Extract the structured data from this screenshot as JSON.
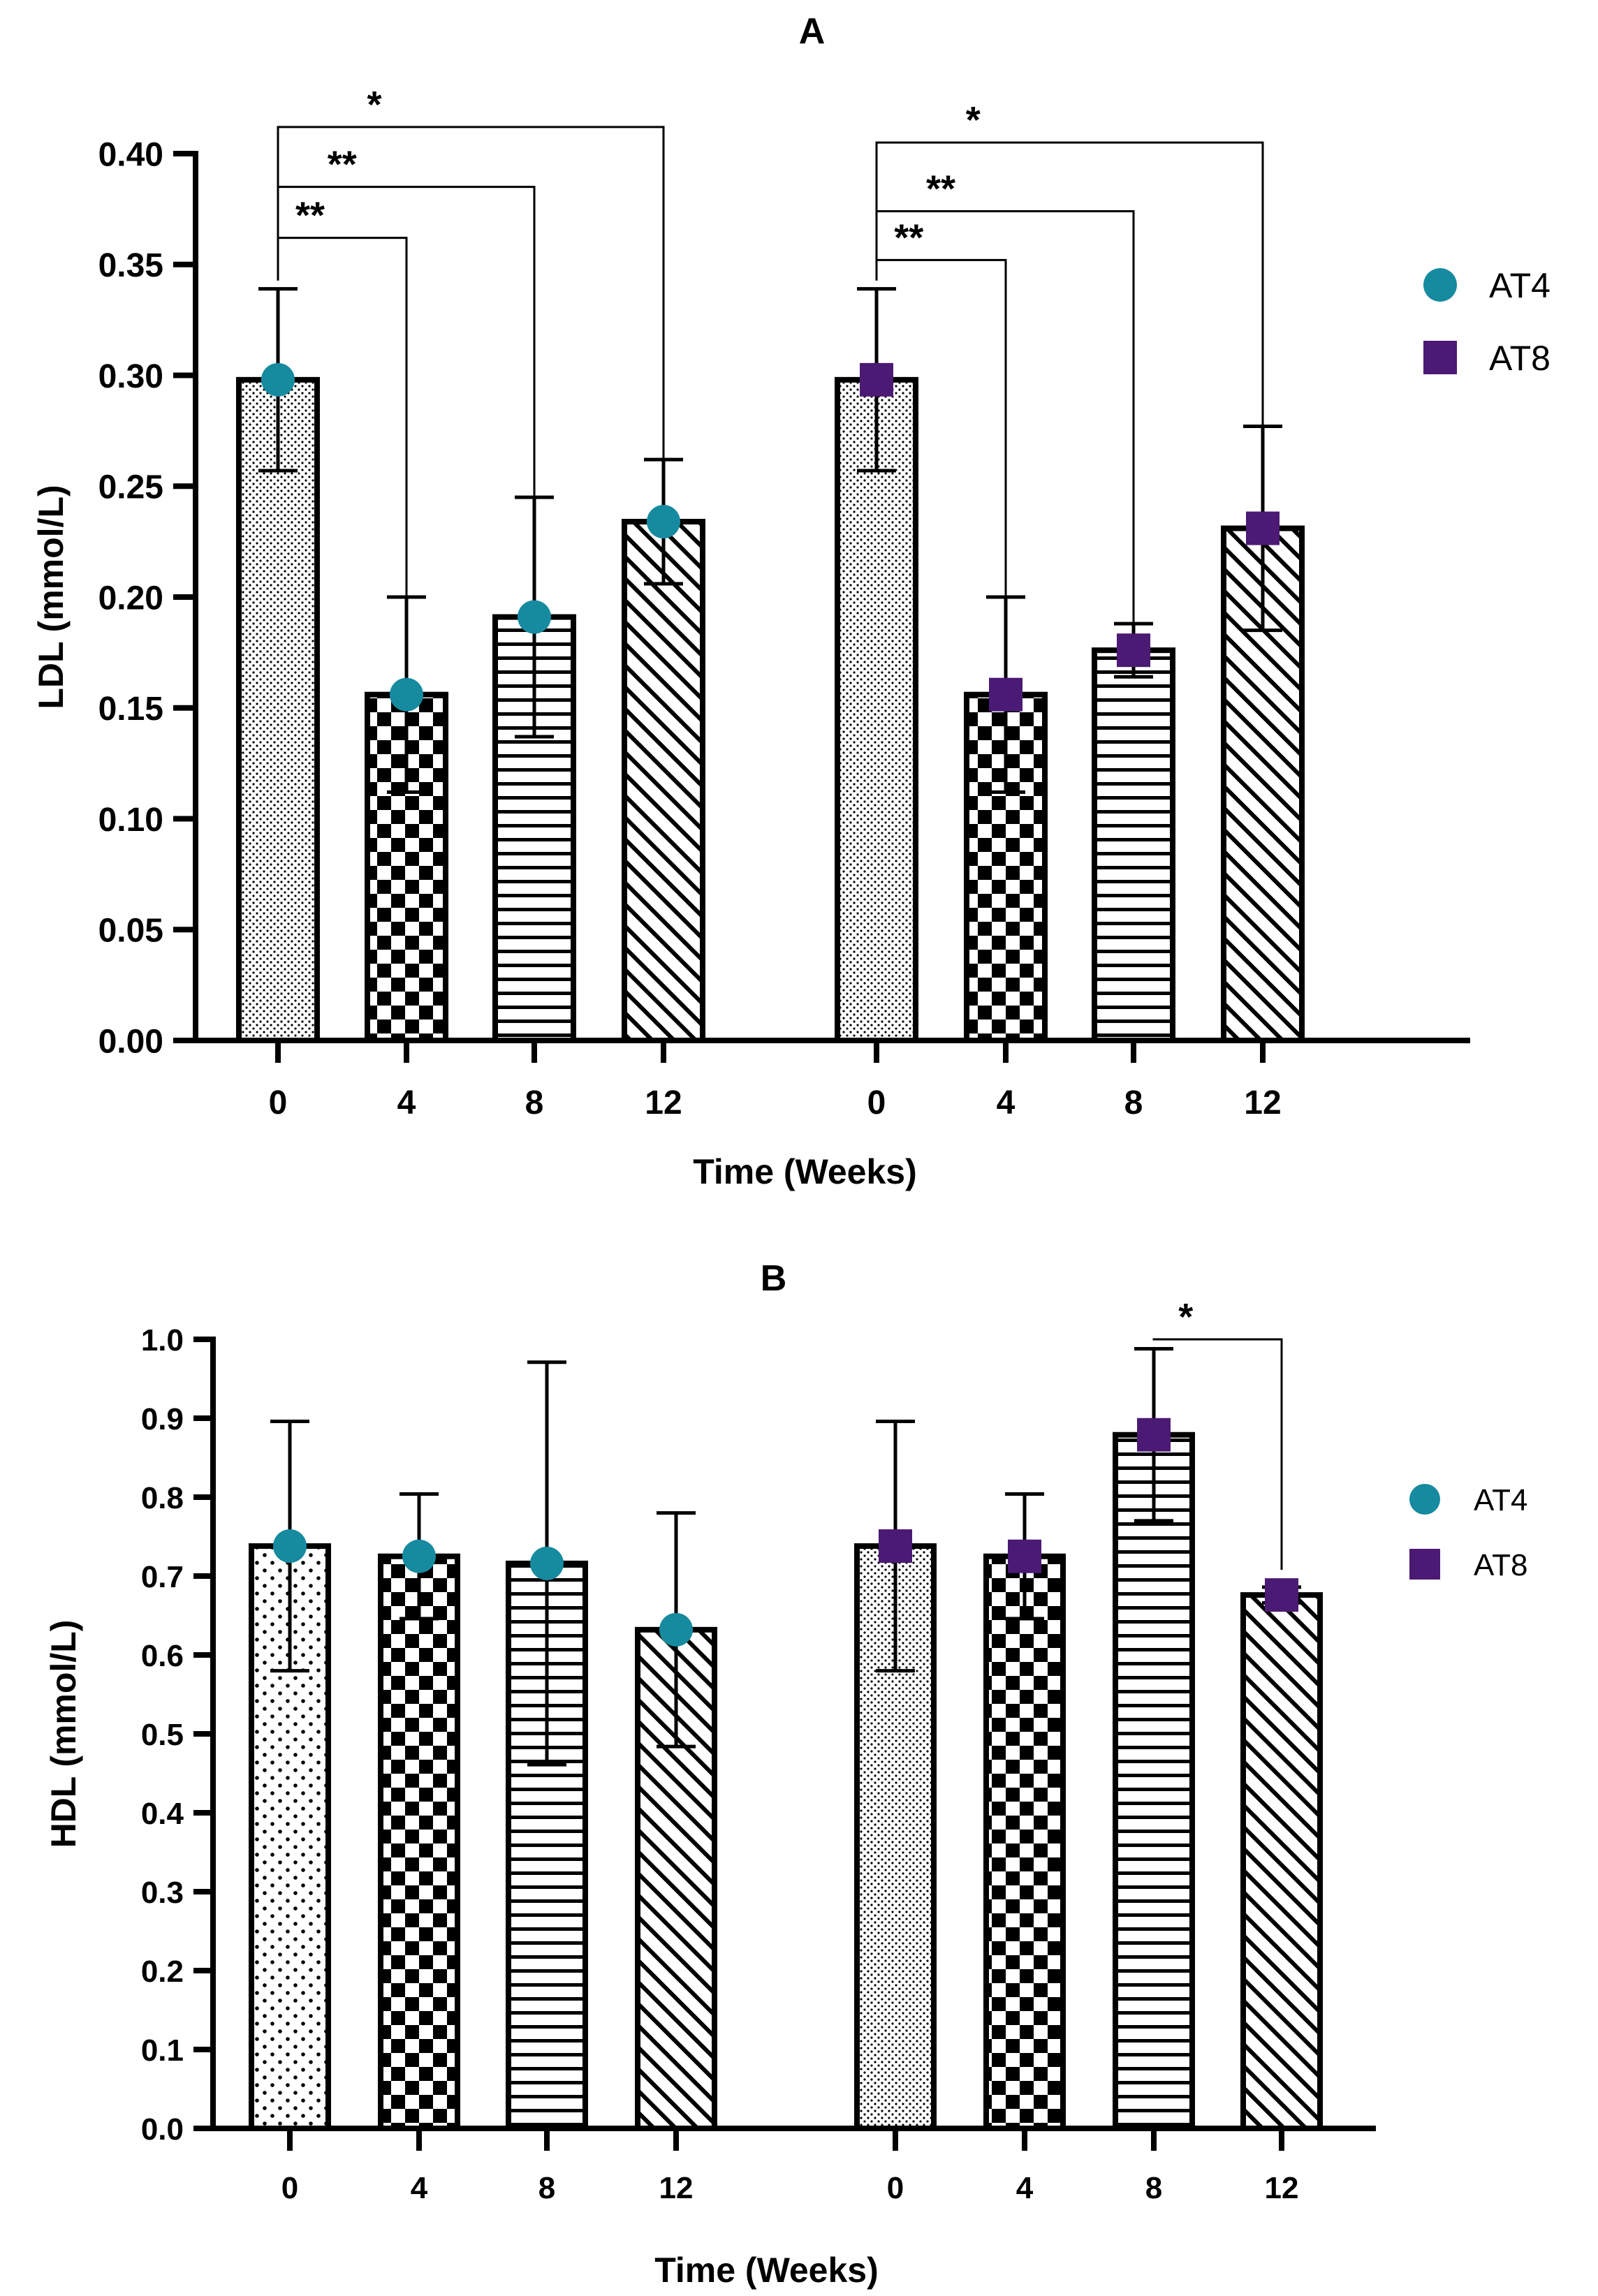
{
  "chart_data": [
    {
      "type": "bar",
      "title": "A",
      "xlabel": "Time (Weeks)",
      "ylabel": "LDL (mmol/L)",
      "ylim": [
        0,
        0.4
      ],
      "yticks": [
        "0.00",
        "0.05",
        "0.10",
        "0.15",
        "0.20",
        "0.25",
        "0.30",
        "0.35",
        "0.40"
      ],
      "categories": [
        "0",
        "4",
        "8",
        "12"
      ],
      "legend_position": "right",
      "series": [
        {
          "name": "AT4",
          "marker": "circle",
          "color": "#168a9f",
          "values": [
            0.298,
            0.156,
            0.191,
            0.234
          ],
          "errors": [
            0.041,
            0.044,
            0.054,
            0.028
          ],
          "patterns": [
            "dots",
            "checker",
            "hlines",
            "diag"
          ]
        },
        {
          "name": "AT8",
          "marker": "square",
          "color": "#4b1a74",
          "values": [
            0.298,
            0.156,
            0.176,
            0.231
          ],
          "errors": [
            0.041,
            0.044,
            0.012,
            0.046
          ],
          "patterns": [
            "dots",
            "checker",
            "hlines",
            "diag"
          ]
        }
      ],
      "annotations": [
        {
          "group": 0,
          "from": 0,
          "to": 1,
          "label": "**",
          "y": 0.362
        },
        {
          "group": 0,
          "from": 0,
          "to": 2,
          "label": "**",
          "y": 0.385
        },
        {
          "group": 0,
          "from": 0,
          "to": 3,
          "label": "*",
          "y": 0.412
        },
        {
          "group": 1,
          "from": 0,
          "to": 1,
          "label": "**",
          "y": 0.352
        },
        {
          "group": 1,
          "from": 0,
          "to": 2,
          "label": "**",
          "y": 0.374
        },
        {
          "group": 1,
          "from": 0,
          "to": 3,
          "label": "*",
          "y": 0.405
        }
      ]
    },
    {
      "type": "bar",
      "title": "B",
      "xlabel": "Time (Weeks)",
      "ylabel": "HDL (mmol/L)",
      "ylim": [
        0,
        1.0
      ],
      "yticks": [
        "0.0",
        "0.1",
        "0.2",
        "0.3",
        "0.4",
        "0.5",
        "0.6",
        "0.7",
        "0.8",
        "0.9",
        "1.0"
      ],
      "categories": [
        "0",
        "4",
        "8",
        "12"
      ],
      "legend_position": "right",
      "series": [
        {
          "name": "AT4",
          "marker": "circle",
          "color": "#168a9f",
          "values": [
            0.738,
            0.725,
            0.716,
            0.632
          ],
          "errors": [
            0.158,
            0.079,
            0.255,
            0.148
          ],
          "patterns": [
            "dots_sparse",
            "checker",
            "hlines",
            "diag"
          ]
        },
        {
          "name": "AT8",
          "marker": "square",
          "color": "#4b1a74",
          "values": [
            0.738,
            0.725,
            0.879,
            0.676
          ],
          "errors": [
            0.158,
            0.079,
            0.109,
            0.01
          ],
          "patterns": [
            "dots",
            "checker",
            "hlines",
            "diag"
          ]
        }
      ],
      "annotations": [
        {
          "group": 1,
          "from": 2,
          "to": 3,
          "label": "*",
          "y": 1.0
        }
      ]
    }
  ]
}
